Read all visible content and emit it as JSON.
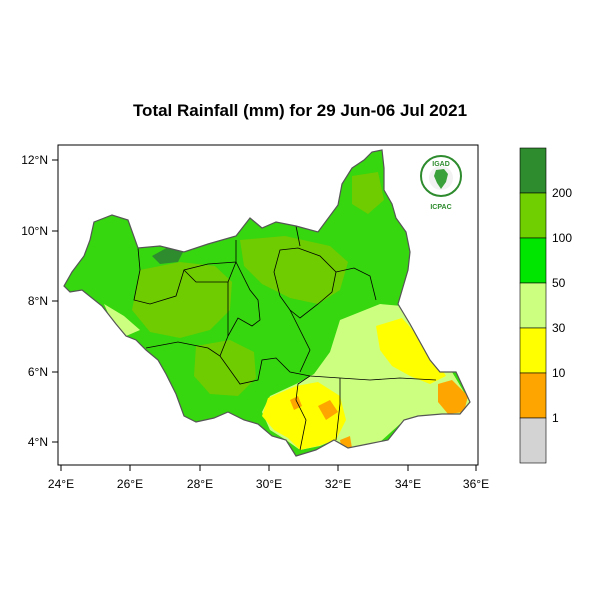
{
  "title": "Total Rainfall (mm) for 29 Jun-06 Jul 2021",
  "lon_ticks": [
    "24°E",
    "26°E",
    "28°E",
    "30°E",
    "32°E",
    "34°E",
    "36°E"
  ],
  "lat_ticks": [
    "12°N",
    "10°N",
    "8°N",
    "6°N",
    "4°N"
  ],
  "map_extent": {
    "lon": [
      24.0,
      36.0
    ],
    "lat": [
      3.4,
      12.2
    ]
  },
  "legend": {
    "levels": [
      "200",
      "100",
      "50",
      "30",
      "10",
      "1"
    ],
    "colors": [
      "#2e8b2e",
      "#6fcf00",
      "#00e600",
      "#ccff80",
      "#ffff00",
      "#ffa500",
      "#d3d3d3"
    ]
  },
  "logo": {
    "top_text": "IGAD",
    "bottom_text": "ICPAC"
  },
  "colors": {
    "rain_50_100": "#36d70e",
    "rain_100_200": "#6fcc00",
    "rain_200_plus": "#2e8b2e",
    "rain_30_50": "#ccff80",
    "rain_10_30": "#ffff00",
    "rain_1_10": "#ffa500"
  }
}
